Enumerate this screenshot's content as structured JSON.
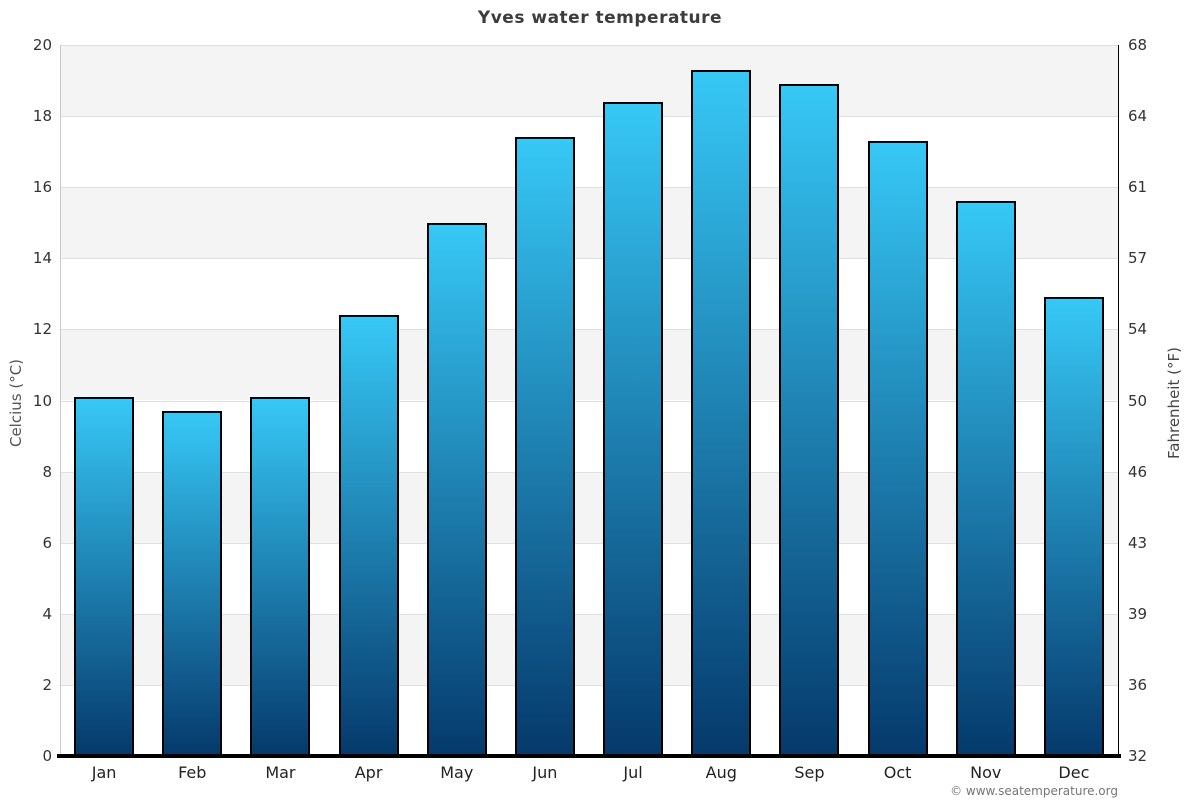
{
  "chart_data": {
    "type": "bar",
    "title": "Yves water temperature",
    "categories": [
      "Jan",
      "Feb",
      "Mar",
      "Apr",
      "May",
      "Jun",
      "Jul",
      "Aug",
      "Sep",
      "Oct",
      "Nov",
      "Dec"
    ],
    "values": [
      10.1,
      9.7,
      10.1,
      12.4,
      15.0,
      17.4,
      18.4,
      19.3,
      18.9,
      17.3,
      15.6,
      12.9
    ],
    "ylabel_left": "Celcius (°C)",
    "ylabel_right": "Fahrenheit (°F)",
    "ylim": [
      0,
      20
    ],
    "yticks_left": [
      0,
      2,
      4,
      6,
      8,
      10,
      12,
      14,
      16,
      18,
      20
    ],
    "yticks_right": [
      32,
      36,
      39,
      43,
      46,
      50,
      54,
      57,
      61,
      64,
      68
    ],
    "legend": "none",
    "grid": "horizontal-bands",
    "band_color": "#f4f4f4",
    "band_alt_color": "#ffffff",
    "gridline_color": "#e0e0e0",
    "bar_gradient_top": "#37c8f6",
    "bar_gradient_bottom": "#05396b",
    "bar_border_color": "#000000"
  },
  "footer": {
    "credit": "© www.seatemperature.org"
  }
}
